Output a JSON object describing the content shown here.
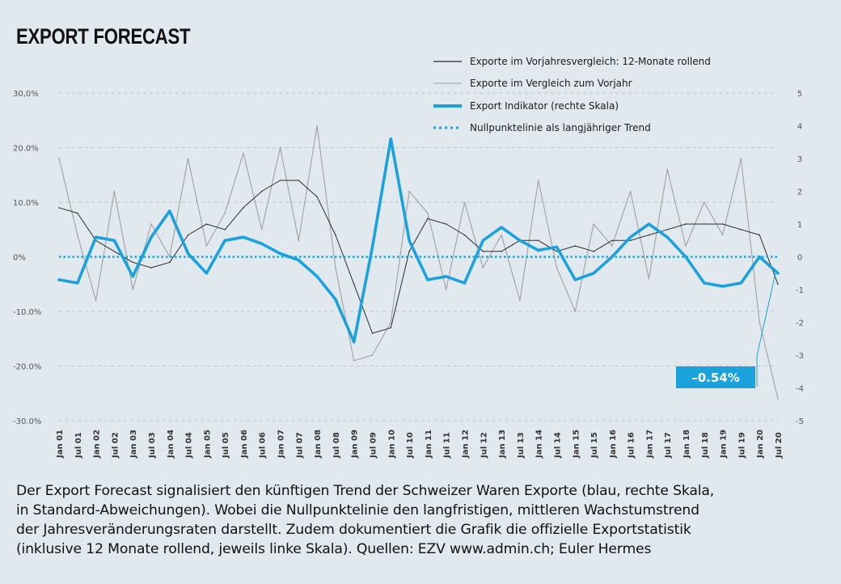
{
  "chart_data": {
    "type": "line",
    "title": "EXPORT FORECAST",
    "left_axis": {
      "ticks": [
        {
          "value": 30,
          "label": "30,0%"
        },
        {
          "value": 20,
          "label": "20.0%"
        },
        {
          "value": 10,
          "label": "10.0%"
        },
        {
          "value": 0,
          "label": "0%"
        },
        {
          "value": -10,
          "label": "-10.0%"
        },
        {
          "value": -20,
          "label": "-20.0%"
        },
        {
          "value": -30,
          "label": "-30.0%"
        }
      ],
      "range": [
        -30,
        30
      ]
    },
    "right_axis": {
      "ticks": [
        {
          "value": 5,
          "label": "5"
        },
        {
          "value": 4,
          "label": "4"
        },
        {
          "value": 3,
          "label": "3"
        },
        {
          "value": 2,
          "label": "2"
        },
        {
          "value": 1,
          "label": "1"
        },
        {
          "value": 0,
          "label": "0"
        },
        {
          "value": -1,
          "label": "-1"
        },
        {
          "value": -2,
          "label": "-2"
        },
        {
          "value": -3,
          "label": "-3"
        },
        {
          "value": -4,
          "label": "-4"
        },
        {
          "value": -5,
          "label": "-5"
        }
      ],
      "range": [
        -5,
        5
      ]
    },
    "x_ticks": [
      "Jan 01",
      "Jul 01",
      "Jan 02",
      "Jul 02",
      "Jan 03",
      "Jul 03",
      "Jan 04",
      "Jul 04",
      "Jan 05",
      "Jul 05",
      "Jan 06",
      "Jul 06",
      "Jan 07",
      "Jul 07",
      "Jan 08",
      "Jul 08",
      "Jan 09",
      "Jul 09",
      "Jan 10",
      "Jul 10",
      "Jan 11",
      "Jul 11",
      "Jan 12",
      "Jul 12",
      "Jan 13",
      "Jul 13",
      "Jan 14",
      "Jul 14",
      "Jan 15",
      "Jul 15",
      "Jan 16",
      "Jul 16",
      "Jan 17",
      "Jul 17",
      "Jan 18",
      "Jul 18",
      "Jan 19",
      "Jul 19",
      "Jan 20",
      "Jul 20"
    ],
    "grid": "horizontal dashed",
    "legend_position": "top-right",
    "series": [
      {
        "name": "Exporte im Vorjahresvergleich: 12-Monate rollend",
        "axis": "left",
        "color": "#2b2b2b",
        "style": "thin",
        "x": [
          "Jan 01",
          "Jul 01",
          "Jan 02",
          "Jul 02",
          "Jan 03",
          "Jul 03",
          "Jan 04",
          "Jul 04",
          "Jan 05",
          "Jul 05",
          "Jan 06",
          "Jul 06",
          "Jan 07",
          "Jul 07",
          "Jan 08",
          "Jul 08",
          "Jan 09",
          "Jul 09",
          "Jan 10",
          "Jul 10",
          "Jan 11",
          "Jul 11",
          "Jan 12",
          "Jul 12",
          "Jan 13",
          "Jul 13",
          "Jan 14",
          "Jul 14",
          "Jan 15",
          "Jul 15",
          "Jan 16",
          "Jul 16",
          "Jan 17",
          "Jul 17",
          "Jan 18",
          "Jul 18",
          "Jan 19",
          "Jul 19",
          "Jan 20",
          "Jul 20"
        ],
        "values": [
          9,
          8,
          3,
          1,
          -1,
          -2,
          -1,
          4,
          6,
          5,
          9,
          12,
          14,
          14,
          11,
          4,
          -5,
          -14,
          -13,
          1,
          7,
          6,
          4,
          1,
          1,
          3,
          3,
          1,
          2,
          1,
          3,
          3,
          4,
          5,
          6,
          6,
          6,
          5,
          4,
          -5
        ]
      },
      {
        "name": "Exporte im Vergleich zum Vorjahr",
        "axis": "left",
        "color": "#9a9a9a",
        "style": "thin",
        "x": [
          "Jan 01",
          "Jul 01",
          "Jan 02",
          "Jul 02",
          "Jan 03",
          "Jul 03",
          "Jan 04",
          "Jul 04",
          "Jan 05",
          "Jul 05",
          "Jan 06",
          "Jul 06",
          "Jan 07",
          "Jul 07",
          "Jan 08",
          "Jul 08",
          "Jan 09",
          "Jul 09",
          "Jan 10",
          "Jul 10",
          "Jan 11",
          "Jul 11",
          "Jan 12",
          "Jul 12",
          "Jan 13",
          "Jul 13",
          "Jan 14",
          "Jul 14",
          "Jan 15",
          "Jul 15",
          "Jan 16",
          "Jul 16",
          "Jan 17",
          "Jul 17",
          "Jan 18",
          "Jul 18",
          "Jan 19",
          "Jul 19",
          "Jan 20",
          "Jul 20"
        ],
        "values": [
          18,
          4,
          -8,
          12,
          -6,
          6,
          0,
          18,
          2,
          8,
          19,
          5,
          20,
          3,
          24,
          -2,
          -19,
          -18,
          -12,
          12,
          8,
          -6,
          10,
          -2,
          4,
          -8,
          14,
          -2,
          -10,
          6,
          2,
          12,
          -4,
          16,
          2,
          10,
          4,
          18,
          -12,
          -26
        ]
      },
      {
        "name": "Export Indikator (rechte Skala)",
        "axis": "right",
        "color": "#1ba1dc",
        "style": "thick",
        "x": [
          "Jan 01",
          "Jul 01",
          "Jan 02",
          "Jul 02",
          "Jan 03",
          "Jul 03",
          "Jan 04",
          "Jul 04",
          "Jan 05",
          "Jul 05",
          "Jan 06",
          "Jul 06",
          "Jan 07",
          "Jul 07",
          "Jan 08",
          "Jul 08",
          "Jan 09",
          "Jul 09",
          "Jan 10",
          "Jul 10",
          "Jan 11",
          "Jul 11",
          "Jan 12",
          "Jul 12",
          "Jan 13",
          "Jul 13",
          "Jan 14",
          "Jul 14",
          "Jan 15",
          "Jul 15",
          "Jan 16",
          "Jul 16",
          "Jan 17",
          "Jul 17",
          "Jan 18",
          "Jul 18",
          "Jan 19",
          "Jul 19",
          "Jan 20",
          "Jul 20"
        ],
        "values": [
          -0.7,
          -0.8,
          0.6,
          0.5,
          -0.6,
          0.6,
          1.4,
          0.1,
          -0.5,
          0.5,
          0.6,
          0.4,
          0.1,
          -0.1,
          -0.6,
          -1.3,
          -2.6,
          0.3,
          3.6,
          0.5,
          -0.7,
          -0.6,
          -0.8,
          0.5,
          0.9,
          0.5,
          0.2,
          0.3,
          -0.7,
          -0.5,
          0.0,
          0.6,
          1.0,
          0.6,
          0.0,
          -0.8,
          -0.9,
          -0.8,
          0.0,
          -0.5
        ]
      },
      {
        "name": "Nullpunktelinie als langjähriger Trend",
        "axis": "right",
        "color": "#1ba1dc",
        "style": "dotted",
        "x": [
          "Jan 01",
          "Jul 20"
        ],
        "values": [
          0,
          0
        ]
      }
    ],
    "annotations": [
      {
        "text": "–0.54%",
        "x": "Jul 20"
      }
    ]
  },
  "caption": [
    "Der Export Forecast signalisiert den künftigen Trend der Schweizer Waren Exporte (blau, rechte Skala,",
    "in Standard-Abweichungen). Wobei die Nullpunktelinie den langfristigen, mittleren Wachstumstrend",
    "der Jahresveränderungsraten darstellt. Zudem dokumentiert die Grafik die offizielle Exportstatistik",
    "(inklusive 12 Monate rollend, jeweils linke Skala). Quellen: EZV www.admin.ch; Euler Hermes"
  ]
}
